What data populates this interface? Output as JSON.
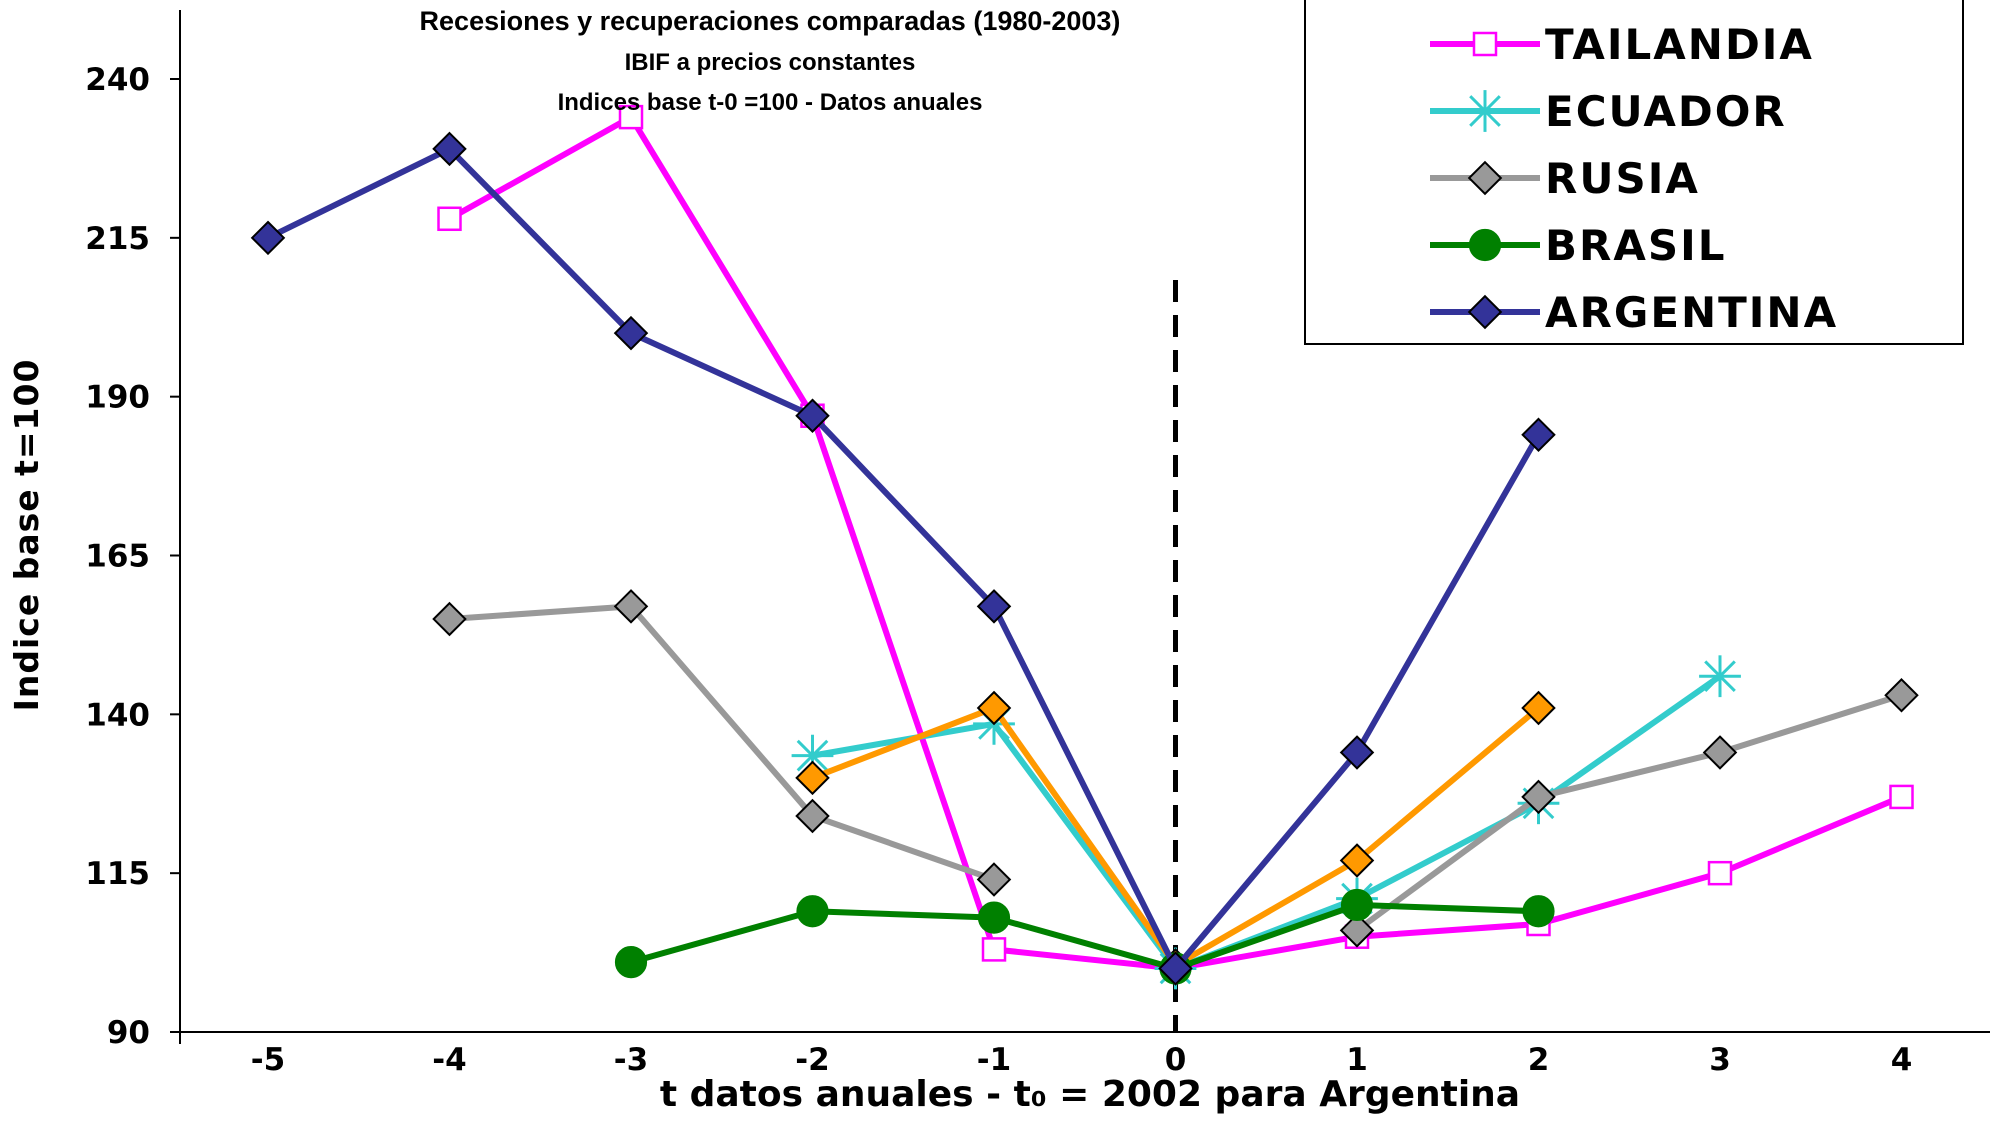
{
  "chart_data": {
    "type": "line",
    "title": "Recesiones y recuperaciones comparadas (1980-2003)",
    "subtitle1": "IBIF a precios constantes",
    "subtitle2": "Indices base t-0 =100 - Datos anuales",
    "xlabel": "t datos anuales - t₀ = 2002 para Argentina",
    "ylabel": "Indice base t=100",
    "x": [
      -5,
      -4,
      -3,
      -2,
      -1,
      0,
      1,
      2,
      3,
      4
    ],
    "x_tick_labels": [
      "-5",
      "-4",
      "-3",
      "-2",
      "-1",
      "0",
      "1",
      "2",
      "3",
      "4"
    ],
    "y_ticks": [
      90,
      115,
      140,
      165,
      190,
      215,
      240
    ],
    "y_tick_labels": [
      "90",
      "115",
      "140",
      "165",
      "190",
      "215",
      "240"
    ],
    "ylim": [
      90,
      250
    ],
    "xlim": [
      -5.5,
      4.5
    ],
    "reference_line_x": 0,
    "legend_position": "top-right",
    "grid": false,
    "series": [
      {
        "name": "TAILANDIA",
        "color": "#FF00FF",
        "marker": "square-open",
        "values": [
          null,
          218,
          234,
          187,
          103,
          100,
          105,
          107,
          115,
          127
        ]
      },
      {
        "name": "ECUADOR",
        "color": "#33CCCC",
        "marker": "star",
        "values": [
          null,
          null,
          null,
          133.5,
          138.5,
          100,
          111,
          126,
          146,
          null
        ]
      },
      {
        "name": "",
        "color": "#FF9900",
        "marker": "diamond",
        "values": [
          null,
          null,
          null,
          130,
          141,
          100.5,
          117,
          141,
          null,
          null
        ]
      },
      {
        "name": "RUSIA",
        "color": "#999999",
        "marker": "diamond",
        "values": [
          null,
          155,
          157,
          124,
          114,
          null,
          106,
          127,
          134,
          143
        ]
      },
      {
        "name": "BRASIL",
        "color": "#008000",
        "marker": "circle",
        "values": [
          null,
          null,
          101,
          109,
          108,
          100,
          110,
          109,
          null,
          null
        ]
      },
      {
        "name": "ARGENTINA",
        "color": "#333399",
        "marker": "diamond",
        "values": [
          215,
          229,
          200,
          187,
          157,
          100,
          134,
          184,
          null,
          null
        ]
      }
    ]
  }
}
